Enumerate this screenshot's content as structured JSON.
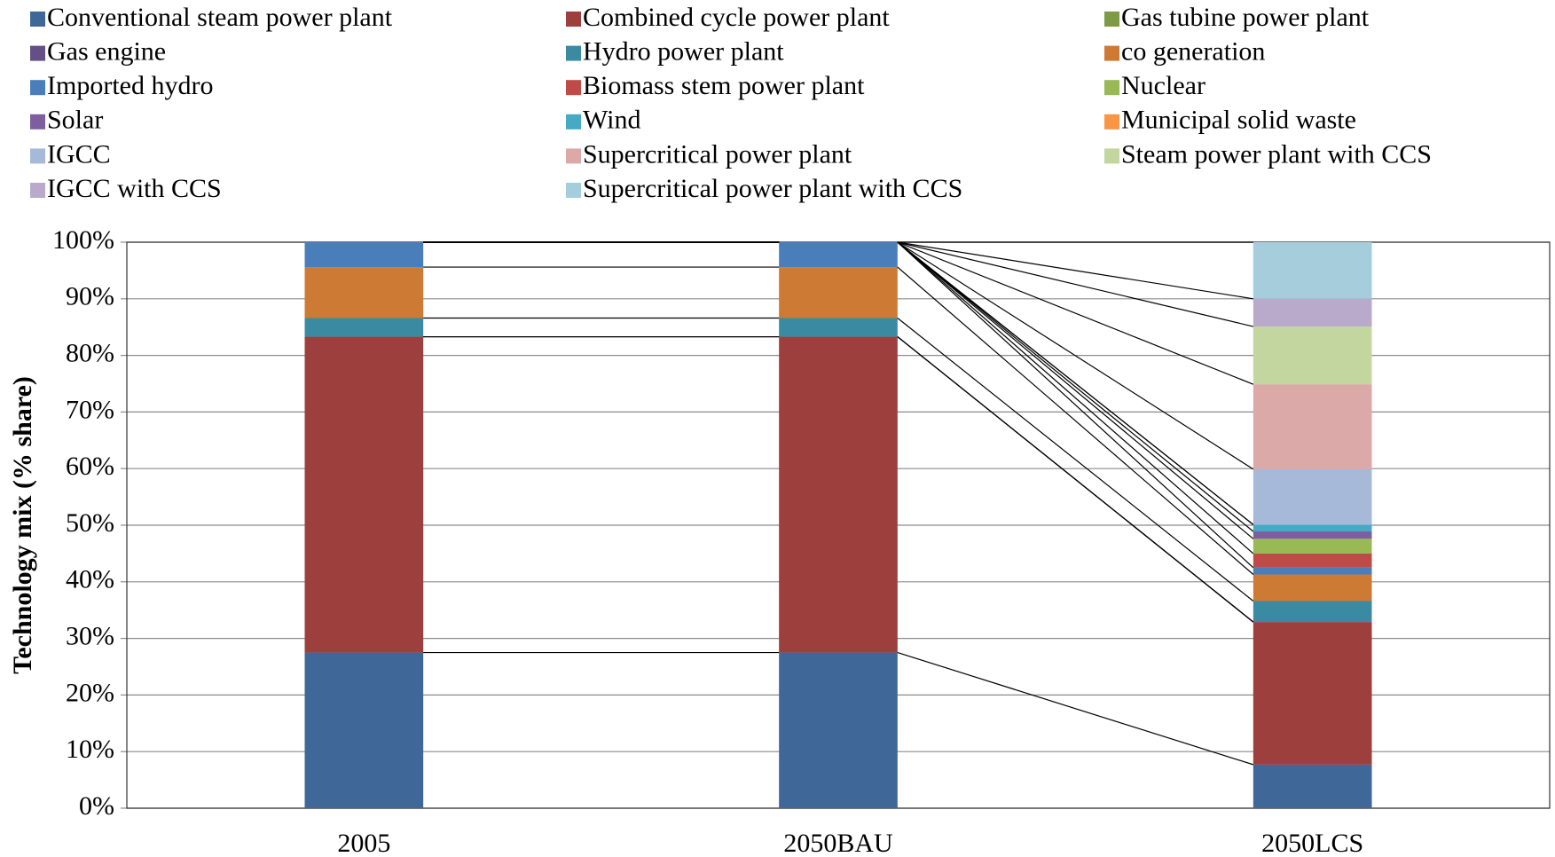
{
  "chart_data": {
    "type": "stacked_bar",
    "y_label": "Technology mix (% share)",
    "categories": [
      "2005",
      "2050BAU",
      "2050LCS"
    ],
    "ylim": [
      0,
      100
    ],
    "yticks": [
      {
        "value": 0,
        "label": "0%"
      },
      {
        "value": 10,
        "label": "10%"
      },
      {
        "value": 20,
        "label": "20%"
      },
      {
        "value": 30,
        "label": "30%"
      },
      {
        "value": 40,
        "label": "40%"
      },
      {
        "value": 50,
        "label": "50%"
      },
      {
        "value": 60,
        "label": "60%"
      },
      {
        "value": 70,
        "label": "70%"
      },
      {
        "value": 80,
        "label": "80%"
      },
      {
        "value": 90,
        "label": "90%"
      },
      {
        "value": 100,
        "label": "100%"
      }
    ],
    "grid": true,
    "series_lines": true,
    "legend": "top",
    "series": [
      {
        "name": "Conventional steam power plant",
        "color": "#3f6898",
        "values": [
          27.5,
          27.5,
          7.7
        ]
      },
      {
        "name": "Combined cycle power plant",
        "color": "#9c3f3d",
        "values": [
          55.8,
          55.8,
          25.2
        ]
      },
      {
        "name": "Gas tubine power plant",
        "color": "#7e9a45",
        "values": [
          0,
          0,
          0
        ]
      },
      {
        "name": "Gas engine",
        "color": "#644f86",
        "values": [
          0,
          0,
          0
        ]
      },
      {
        "name": "Hydro power plant",
        "color": "#3a8ba1",
        "values": [
          3.3,
          3.3,
          3.7
        ]
      },
      {
        "name": "co generation",
        "color": "#cd7a35",
        "values": [
          9.0,
          9.0,
          4.7
        ]
      },
      {
        "name": "Imported hydro",
        "color": "#4a7ebb",
        "values": [
          4.4,
          4.4,
          1.2
        ]
      },
      {
        "name": "Biomass stem power plant",
        "color": "#be4b48",
        "values": [
          0,
          0,
          2.5
        ]
      },
      {
        "name": "Nuclear",
        "color": "#98b954",
        "values": [
          0,
          0,
          2.6
        ]
      },
      {
        "name": "Solar",
        "color": "#7d5fa0",
        "values": [
          0,
          0,
          1.3
        ]
      },
      {
        "name": "Wind",
        "color": "#46aac5",
        "values": [
          0,
          0,
          1.2
        ]
      },
      {
        "name": "Municipal solid waste",
        "color": "#f79646",
        "values": [
          0,
          0,
          0
        ]
      },
      {
        "name": "IGCC",
        "color": "#a6b9d9",
        "values": [
          0,
          0,
          9.8
        ]
      },
      {
        "name": "Supercritical power plant",
        "color": "#dba9a8",
        "values": [
          0,
          0,
          15.0
        ]
      },
      {
        "name": "Steam power plant with CCS",
        "color": "#c3d6a0",
        "values": [
          0,
          0,
          10.2
        ]
      },
      {
        "name": "IGCC with CCS",
        "color": "#b9a9cb",
        "values": [
          0,
          0,
          4.9
        ]
      },
      {
        "name": "Supercritical power plant with CCS",
        "color": "#a5cddb",
        "values": [
          0,
          0,
          10.0
        ]
      }
    ]
  }
}
